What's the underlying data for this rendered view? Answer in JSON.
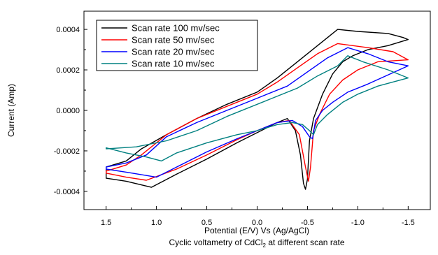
{
  "chart_data": {
    "type": "line",
    "xlabel": "Potential (E/V) Vs (Ag/AgCl)",
    "ylabel": "Current (Amp)",
    "caption": {
      "main": "Cyclic voltametry of CdCl",
      "sub": "2",
      "rest": " at different scan rate"
    },
    "xlim": [
      1.72,
      -1.72
    ],
    "ylim": [
      -0.00049,
      0.00049
    ],
    "x_ticks": [
      1.5,
      1.0,
      0.5,
      0.0,
      -0.5,
      -1.0,
      -1.5
    ],
    "x_tick_labels": [
      "1.5",
      "1.0",
      "0.5",
      "0.0",
      "-0.5",
      "-1.0",
      "-1.5"
    ],
    "y_ticks": [
      0.0004,
      0.0002,
      0.0,
      -0.0002,
      -0.0004
    ],
    "y_tick_labels": [
      "0.0004",
      "0.0002",
      "0.0000",
      "-0.0002",
      "-0.0004"
    ],
    "legend_position": "top-left",
    "series": [
      {
        "name": "Scan rate 100 mv/sec",
        "color": "#000000",
        "points": [
          [
            1.5,
            -0.000335
          ],
          [
            1.3,
            -0.00035
          ],
          [
            1.05,
            -0.00038
          ],
          [
            0.8,
            -0.000315
          ],
          [
            0.5,
            -0.00024
          ],
          [
            0.2,
            -0.00016
          ],
          [
            0.0,
            -0.00011
          ],
          [
            -0.2,
            -6e-05
          ],
          [
            -0.3,
            -4e-05
          ],
          [
            -0.38,
            -0.0001
          ],
          [
            -0.43,
            -0.00022
          ],
          [
            -0.46,
            -0.00036
          ],
          [
            -0.48,
            -0.00039
          ],
          [
            -0.5,
            -0.00034
          ],
          [
            -0.52,
            -0.00015
          ],
          [
            -0.56,
            -4e-05
          ],
          [
            -0.65,
            8e-05
          ],
          [
            -0.75,
            0.00018
          ],
          [
            -0.85,
            0.00024
          ],
          [
            -0.95,
            0.00027
          ],
          [
            -1.1,
            0.0003
          ],
          [
            -1.3,
            0.00032
          ],
          [
            -1.5,
            0.00035
          ],
          [
            -1.45,
            0.00036
          ],
          [
            -1.3,
            0.00038
          ],
          [
            -1.0,
            0.00039
          ],
          [
            -0.8,
            0.0004
          ],
          [
            -0.6,
            0.00032
          ],
          [
            -0.4,
            0.00024
          ],
          [
            -0.2,
            0.00016
          ],
          [
            0.0,
            9e-05
          ],
          [
            0.3,
            3e-05
          ],
          [
            0.6,
            -4e-05
          ],
          [
            0.9,
            -0.00012
          ],
          [
            1.15,
            -0.00019
          ],
          [
            1.3,
            -0.00025
          ],
          [
            1.5,
            -0.00028
          ]
        ]
      },
      {
        "name": "Scan rate 50 mv/sec",
        "color": "#ff0000",
        "points": [
          [
            1.5,
            -0.00031
          ],
          [
            1.3,
            -0.00033
          ],
          [
            1.1,
            -0.000345
          ],
          [
            0.8,
            -0.00029
          ],
          [
            0.5,
            -0.00022
          ],
          [
            0.2,
            -0.000145
          ],
          [
            0.0,
            -0.0001
          ],
          [
            -0.2,
            -6e-05
          ],
          [
            -0.32,
            -5e-05
          ],
          [
            -0.42,
            -0.00012
          ],
          [
            -0.48,
            -0.00028
          ],
          [
            -0.51,
            -0.00035
          ],
          [
            -0.53,
            -0.00028
          ],
          [
            -0.56,
            -0.0001
          ],
          [
            -0.62,
            -2e-05
          ],
          [
            -0.72,
            8e-05
          ],
          [
            -0.85,
            0.00015
          ],
          [
            -1.0,
            0.0002
          ],
          [
            -1.2,
            0.00024
          ],
          [
            -1.5,
            0.00025
          ],
          [
            -1.35,
            0.00029
          ],
          [
            -1.1,
            0.00031
          ],
          [
            -0.8,
            0.00033
          ],
          [
            -0.6,
            0.00028
          ],
          [
            -0.4,
            0.00021
          ],
          [
            -0.2,
            0.00014
          ],
          [
            0.0,
            8e-05
          ],
          [
            0.3,
            2e-05
          ],
          [
            0.6,
            -4e-05
          ],
          [
            0.9,
            -0.00012
          ],
          [
            1.15,
            -0.00022
          ],
          [
            1.3,
            -0.00027
          ],
          [
            1.5,
            -0.0003
          ]
        ]
      },
      {
        "name": "Scan rate 20 mv/sec",
        "color": "#0000ff",
        "points": [
          [
            1.5,
            -0.00029
          ],
          [
            1.3,
            -0.000305
          ],
          [
            1.0,
            -0.00033
          ],
          [
            0.8,
            -0.00028
          ],
          [
            0.5,
            -0.000205
          ],
          [
            0.2,
            -0.00014
          ],
          [
            0.0,
            -0.0001
          ],
          [
            -0.2,
            -6e-05
          ],
          [
            -0.35,
            -5e-05
          ],
          [
            -0.45,
            -8e-05
          ],
          [
            -0.52,
            -0.00013
          ],
          [
            -0.55,
            -0.00014
          ],
          [
            -0.58,
            -5e-05
          ],
          [
            -0.65,
            0.0
          ],
          [
            -0.75,
            4e-05
          ],
          [
            -0.9,
            9e-05
          ],
          [
            -1.1,
            0.00013
          ],
          [
            -1.5,
            0.00022
          ],
          [
            -1.3,
            0.00024
          ],
          [
            -1.1,
            0.00028
          ],
          [
            -0.9,
            0.00031
          ],
          [
            -0.7,
            0.00026
          ],
          [
            -0.5,
            0.00019
          ],
          [
            -0.3,
            0.00012
          ],
          [
            0.0,
            6e-05
          ],
          [
            0.3,
            0.0
          ],
          [
            0.6,
            -6e-05
          ],
          [
            0.9,
            -0.00013
          ],
          [
            1.1,
            -0.00022
          ],
          [
            1.3,
            -0.00026
          ],
          [
            1.5,
            -0.00028
          ]
        ]
      },
      {
        "name": "Scan rate 10 mv/sec",
        "color": "#008080",
        "points": [
          [
            1.5,
            -0.000185
          ],
          [
            1.3,
            -0.00021
          ],
          [
            1.1,
            -0.00023
          ],
          [
            0.95,
            -0.00025
          ],
          [
            0.8,
            -0.00021
          ],
          [
            0.5,
            -0.00016
          ],
          [
            0.2,
            -0.00012
          ],
          [
            0.0,
            -0.0001
          ],
          [
            -0.2,
            -7e-05
          ],
          [
            -0.35,
            -6e-05
          ],
          [
            -0.45,
            -7e-05
          ],
          [
            -0.52,
            -0.0001
          ],
          [
            -0.56,
            -0.00012
          ],
          [
            -0.6,
            -7e-05
          ],
          [
            -0.7,
            -2e-05
          ],
          [
            -0.85,
            4e-05
          ],
          [
            -1.0,
            8e-05
          ],
          [
            -1.2,
            0.00012
          ],
          [
            -1.5,
            0.00016
          ],
          [
            -1.3,
            0.0002
          ],
          [
            -1.05,
            0.00024
          ],
          [
            -0.9,
            0.00027
          ],
          [
            -0.8,
            0.00022
          ],
          [
            -0.6,
            0.00017
          ],
          [
            -0.4,
            0.00011
          ],
          [
            -0.1,
            5e-05
          ],
          [
            0.3,
            -3e-05
          ],
          [
            0.6,
            -0.0001
          ],
          [
            0.9,
            -0.00015
          ],
          [
            1.2,
            -0.00018
          ],
          [
            1.5,
            -0.00019
          ]
        ]
      }
    ]
  }
}
